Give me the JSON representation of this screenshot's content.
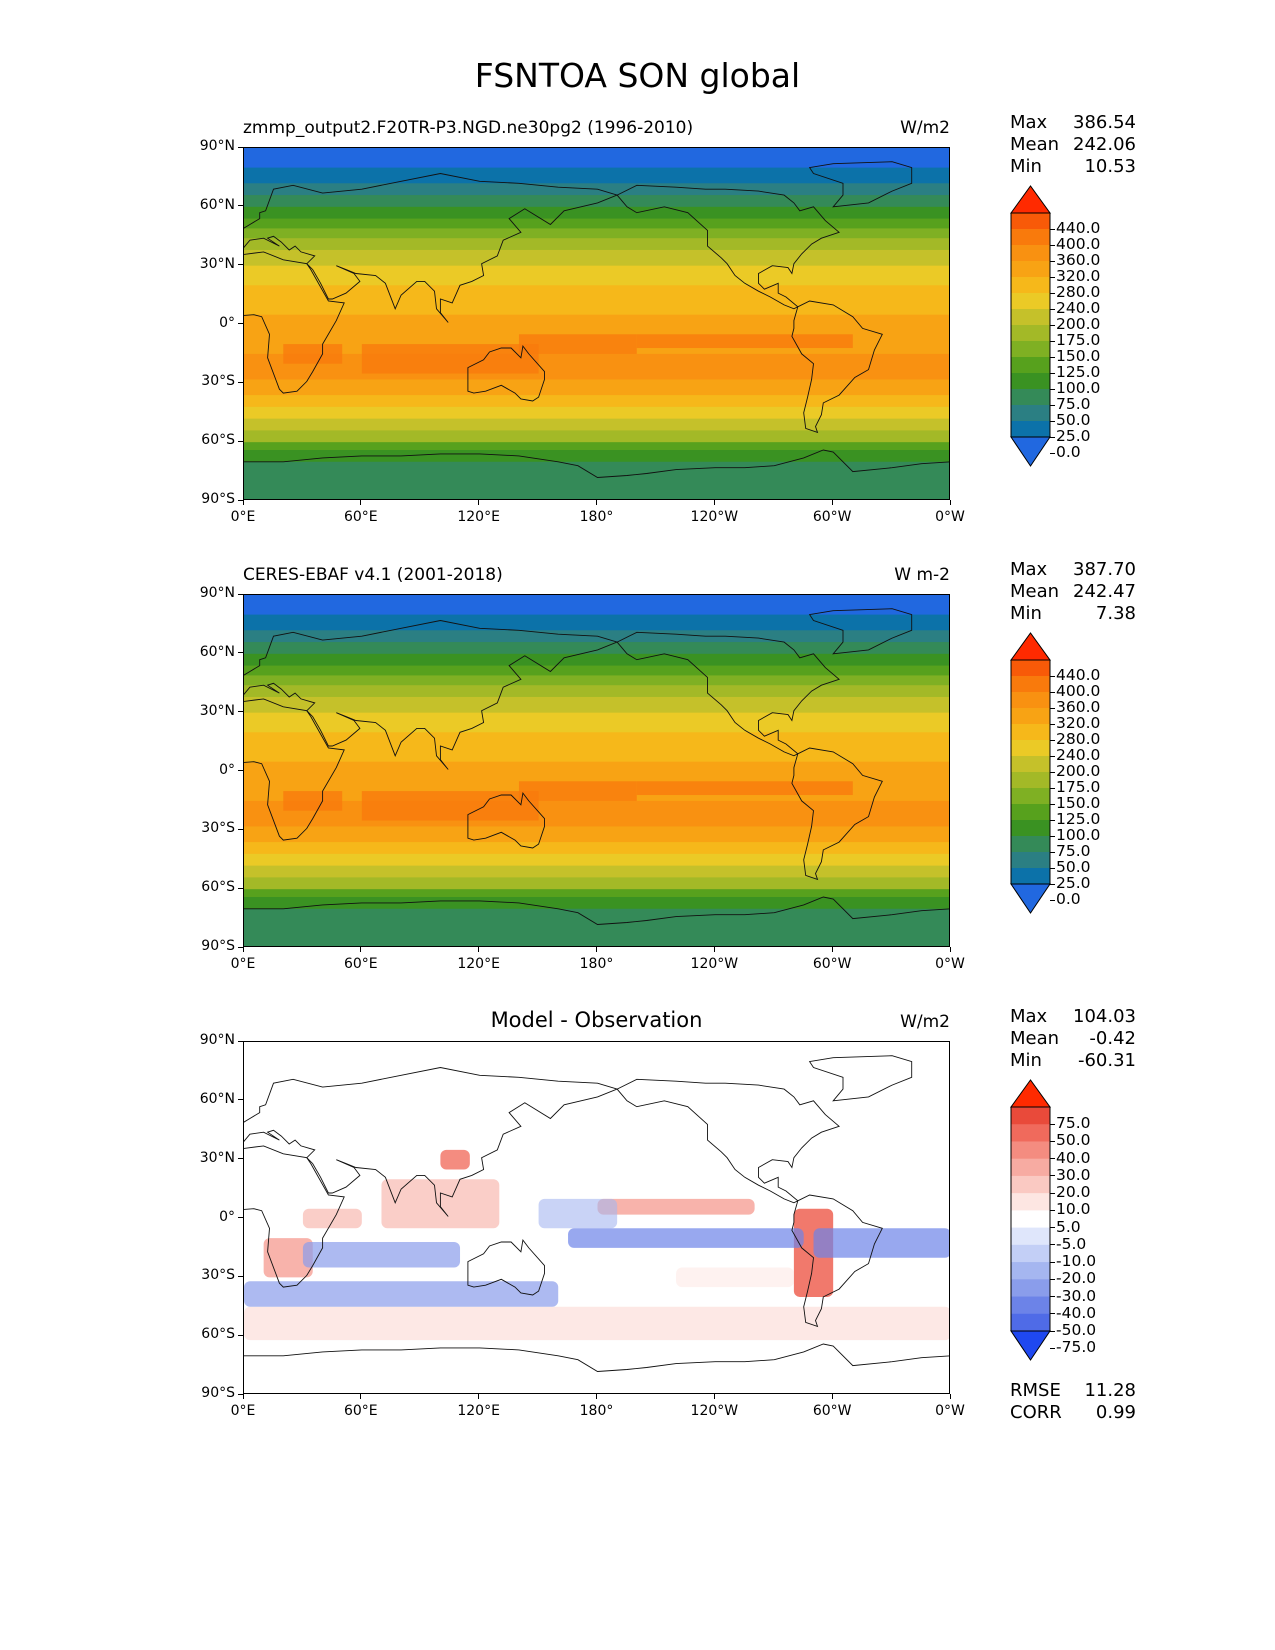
{
  "figure_title": "FSNTOA SON global",
  "x_ticks": [
    "0°E",
    "60°E",
    "120°E",
    "180°",
    "120°W",
    "60°W",
    "0°W"
  ],
  "y_ticks": [
    "90°N",
    "60°N",
    "30°N",
    "0°",
    "30°S",
    "60°S",
    "90°S"
  ],
  "chart_data": [
    {
      "type": "map",
      "title": "zmmp_output2.F20TR-P3.NGD.ne30pg2 (1996-2010)",
      "units": "W/m2",
      "stats": {
        "max_label": "Max",
        "max": "386.54",
        "mean_label": "Mean",
        "mean": "242.06",
        "min_label": "Min",
        "min": "10.53"
      },
      "colorbar": {
        "levels": [
          "440.0",
          "400.0",
          "360.0",
          "320.0",
          "280.0",
          "240.0",
          "200.0",
          "175.0",
          "150.0",
          "125.0",
          "100.0",
          "75.0",
          "50.0",
          "25.0",
          "0.0"
        ],
        "colors": [
          "#ff2a00",
          "#f85a08",
          "#f97a0c",
          "#f99111",
          "#f8a314",
          "#f6b81a",
          "#ebca26",
          "#c5c12a",
          "#a3b927",
          "#7fb023",
          "#57a11d",
          "#3a9222",
          "#348a58",
          "#2b7f83",
          "#0c72a9",
          "#2168e0"
        ],
        "extend": "both"
      }
    },
    {
      "type": "map",
      "title": "CERES-EBAF v4.1 (2001-2018)",
      "units": "W m-2",
      "stats": {
        "max_label": "Max",
        "max": "387.70",
        "mean_label": "Mean",
        "mean": "242.47",
        "min_label": "Min",
        "min": "7.38"
      },
      "colorbar": {
        "levels": [
          "440.0",
          "400.0",
          "360.0",
          "320.0",
          "280.0",
          "240.0",
          "200.0",
          "175.0",
          "150.0",
          "125.0",
          "100.0",
          "75.0",
          "50.0",
          "25.0",
          "0.0"
        ],
        "colors": [
          "#ff2a00",
          "#f85a08",
          "#f97a0c",
          "#f99111",
          "#f8a314",
          "#f6b81a",
          "#ebca26",
          "#c5c12a",
          "#a3b927",
          "#7fb023",
          "#57a11d",
          "#3a9222",
          "#348a58",
          "#2b7f83",
          "#0c72a9",
          "#2168e0"
        ],
        "extend": "both"
      }
    },
    {
      "type": "map",
      "title": "Model - Observation",
      "units": "W/m2",
      "stats": {
        "max_label": "Max",
        "max": "104.03",
        "mean_label": "Mean",
        "mean": "-0.42",
        "min_label": "Min",
        "min": "-60.31"
      },
      "metrics": {
        "rmse_label": "RMSE",
        "rmse": "11.28",
        "corr_label": "CORR",
        "corr": "0.99"
      },
      "colorbar": {
        "levels": [
          "75.0",
          "50.0",
          "40.0",
          "30.0",
          "20.0",
          "10.0",
          "5.0",
          "-5.0",
          "-10.0",
          "-20.0",
          "-30.0",
          "-40.0",
          "-50.0",
          "-75.0"
        ],
        "colors": [
          "#ff2a00",
          "#e94a3a",
          "#f06a5c",
          "#f48c80",
          "#f7aba2",
          "#fac9c2",
          "#fde6e2",
          "#ffffff",
          "#dfe6fb",
          "#c3cff6",
          "#a5b6f0",
          "#8a9deb",
          "#6c83e8",
          "#4f6be7",
          "#1f48f0"
        ],
        "extend": "both"
      }
    }
  ]
}
